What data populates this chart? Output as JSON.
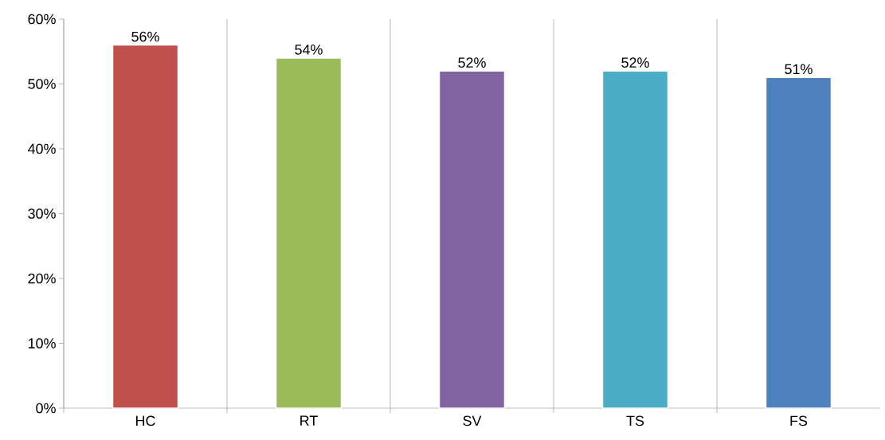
{
  "chart_data": {
    "type": "bar",
    "categories": [
      "HC",
      "RT",
      "SV",
      "TS",
      "FS"
    ],
    "values": [
      56,
      54,
      52,
      52,
      51
    ],
    "colors": [
      "#c0504d",
      "#9bbb59",
      "#8064a2",
      "#4bacc6",
      "#4f81bd"
    ],
    "value_labels": [
      "56%",
      "54%",
      "52%",
      "52%",
      "51%"
    ],
    "ylim": [
      0,
      60
    ],
    "yticks": [
      {
        "value": 0,
        "label": "0%"
      },
      {
        "value": 10,
        "label": "10%"
      },
      {
        "value": 20,
        "label": "20%"
      },
      {
        "value": 30,
        "label": "30%"
      },
      {
        "value": 40,
        "label": "40%"
      },
      {
        "value": 50,
        "label": "50%"
      },
      {
        "value": 60,
        "label": "60%"
      }
    ],
    "grid": "x"
  }
}
